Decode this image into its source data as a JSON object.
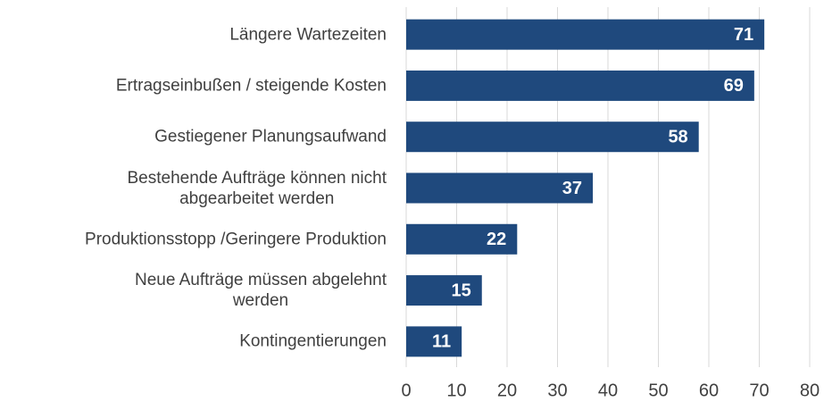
{
  "chart_data": {
    "type": "hbar",
    "categories": [
      "Längere Wartezeiten",
      "Ertragseinbußen / steigende Kosten",
      "Gestiegener Planungsaufwand",
      "Bestehende Aufträge können nicht\nabgearbeitet werden",
      "Produktionsstopp /Geringere Produktion",
      "Neue Aufträge müssen abgelehnt\nwerden",
      "Kontingentierungen"
    ],
    "values": [
      71,
      69,
      58,
      37,
      22,
      15,
      11
    ],
    "color": "#1f497d",
    "xlim": [
      0,
      80
    ],
    "xticks": [
      0,
      10,
      20,
      30,
      40,
      50,
      60,
      70,
      80
    ],
    "grid": true
  }
}
